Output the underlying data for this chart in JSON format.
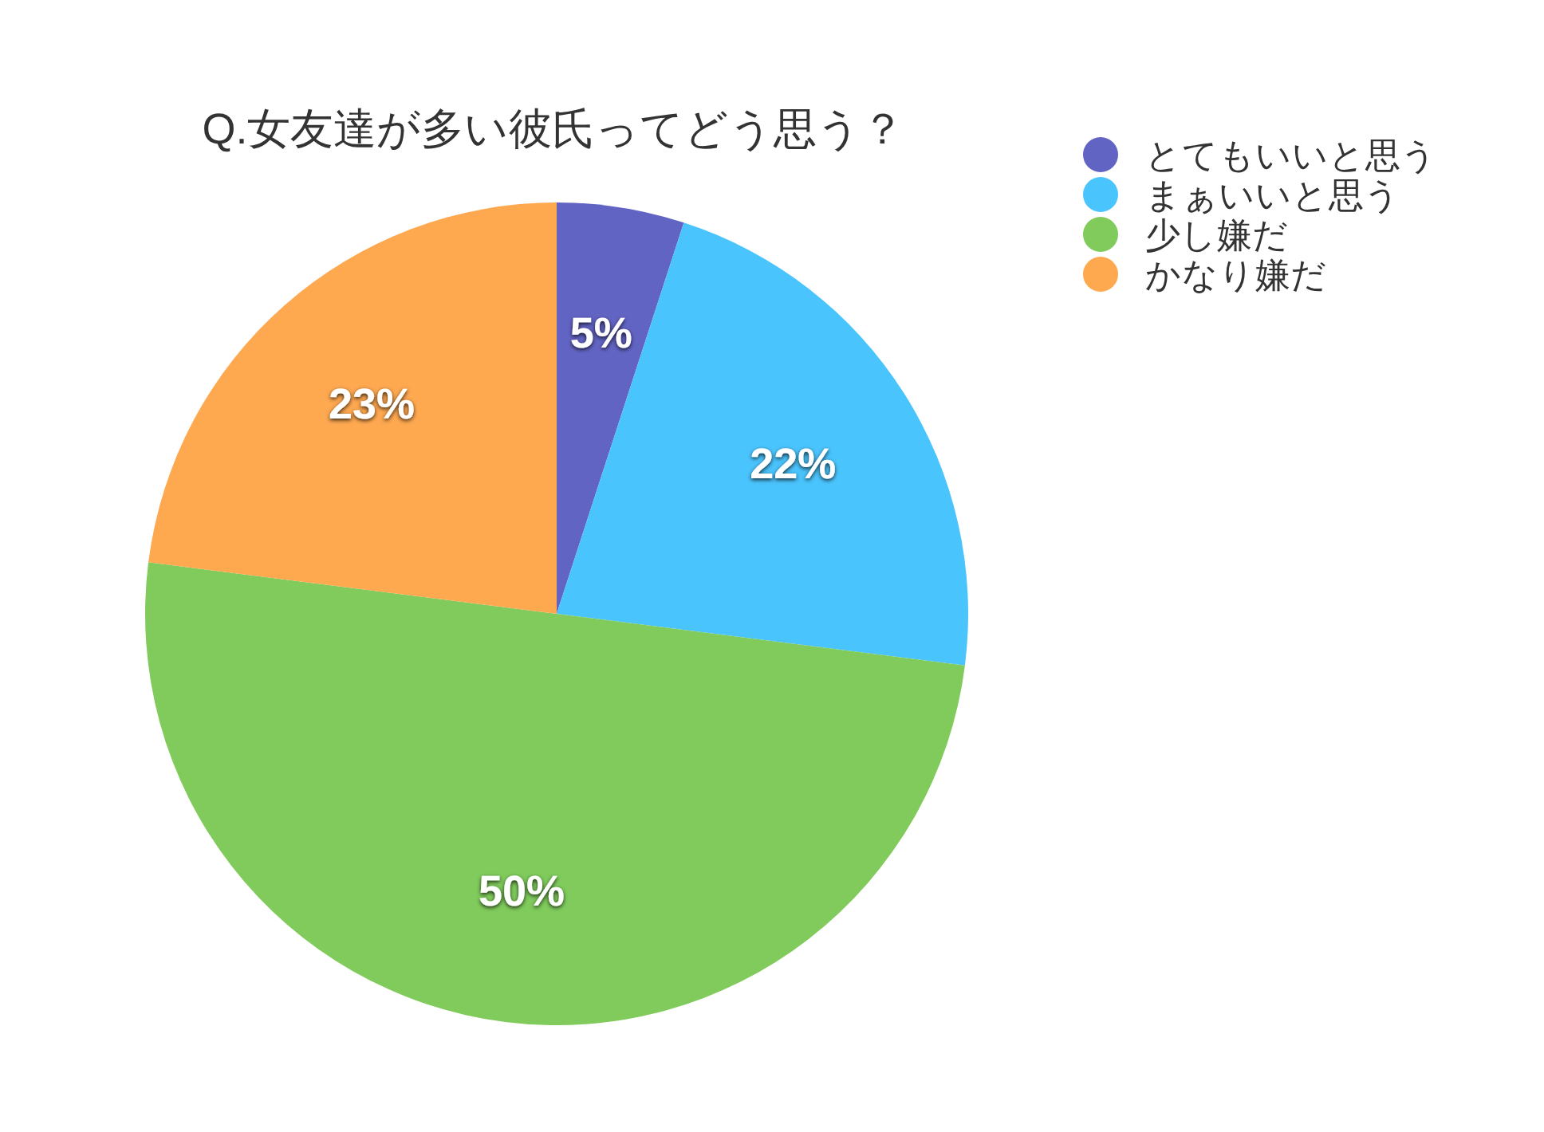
{
  "chart_data": {
    "type": "pie",
    "title": "Q.女友達が多い彼氏ってどう思う？",
    "categories": [
      "とてもいいと思う",
      "まぁいいと思う",
      "少し嫌だ",
      "かなり嫌だ"
    ],
    "values": [
      5,
      22,
      50,
      23
    ],
    "value_labels": [
      "5%",
      "22%",
      "50%",
      "23%"
    ],
    "colors": [
      "#6264c4",
      "#4ac4fd",
      "#80cb5c",
      "#fea850"
    ],
    "legend": "top right"
  }
}
